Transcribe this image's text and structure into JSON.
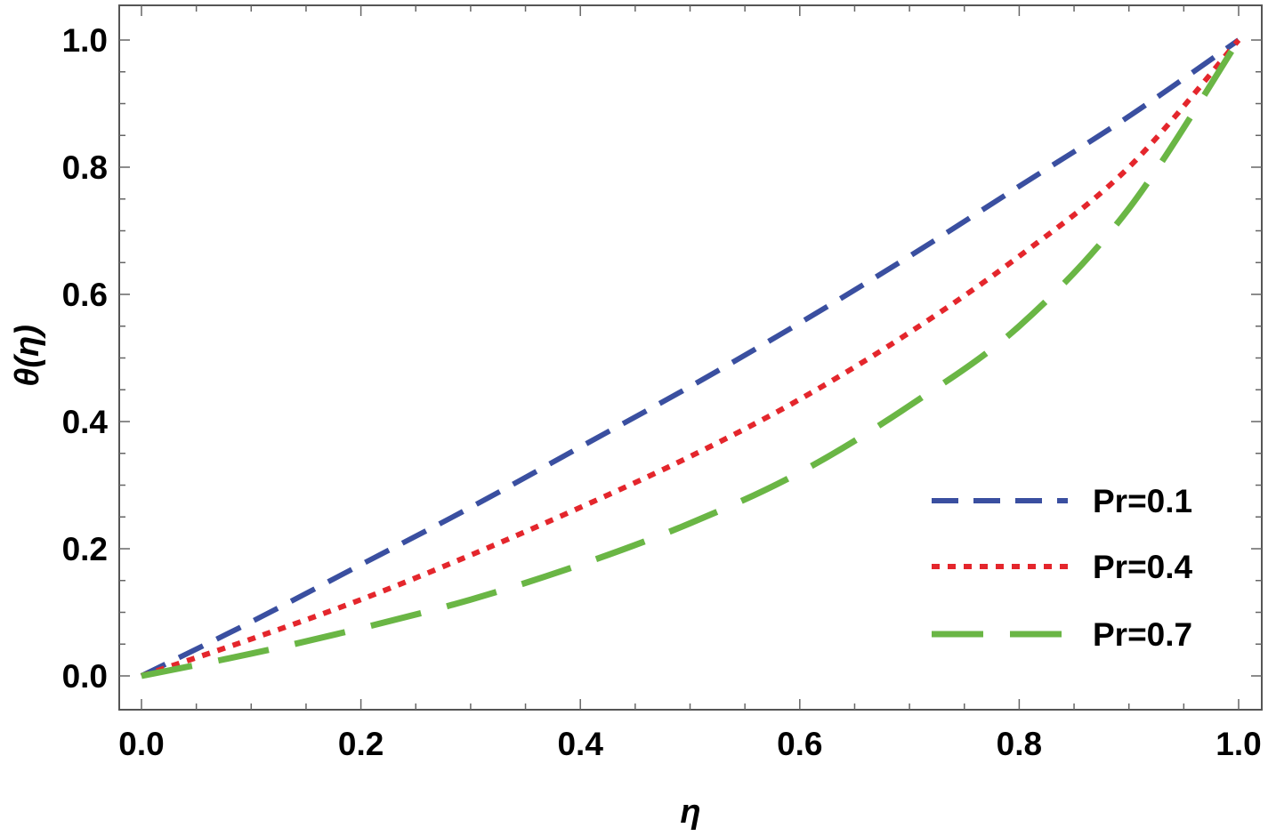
{
  "chart_data": {
    "type": "line",
    "title": "",
    "xlabel": "η",
    "ylabel": "θ(η)",
    "xlim": [
      0.0,
      1.0
    ],
    "ylim": [
      0.0,
      1.0
    ],
    "x_ticks": [
      "0.0",
      "0.2",
      "0.4",
      "0.6",
      "0.8",
      "1.0"
    ],
    "y_ticks": [
      "0.0",
      "0.2",
      "0.4",
      "0.6",
      "0.8",
      "1.0"
    ],
    "grid": false,
    "legend_position": "bottom-right",
    "x": [
      0.0,
      0.1,
      0.2,
      0.3,
      0.4,
      0.5,
      0.6,
      0.7,
      0.8,
      0.9,
      1.0
    ],
    "series": [
      {
        "name": "Pr=0.1",
        "color": "#3a4fa0",
        "dash": "dashed",
        "values": [
          0.0,
          0.085,
          0.175,
          0.265,
          0.36,
          0.455,
          0.555,
          0.66,
          0.77,
          0.88,
          1.0
        ]
      },
      {
        "name": "Pr=0.4",
        "color": "#e4262c",
        "dash": "dotted",
        "values": [
          0.0,
          0.058,
          0.12,
          0.19,
          0.265,
          0.345,
          0.435,
          0.54,
          0.66,
          0.8,
          1.0
        ]
      },
      {
        "name": "Pr=0.7",
        "color": "#6ab645",
        "dash": "long-dashed",
        "values": [
          0.0,
          0.035,
          0.075,
          0.12,
          0.175,
          0.24,
          0.32,
          0.425,
          0.55,
          0.735,
          1.0
        ]
      }
    ]
  }
}
